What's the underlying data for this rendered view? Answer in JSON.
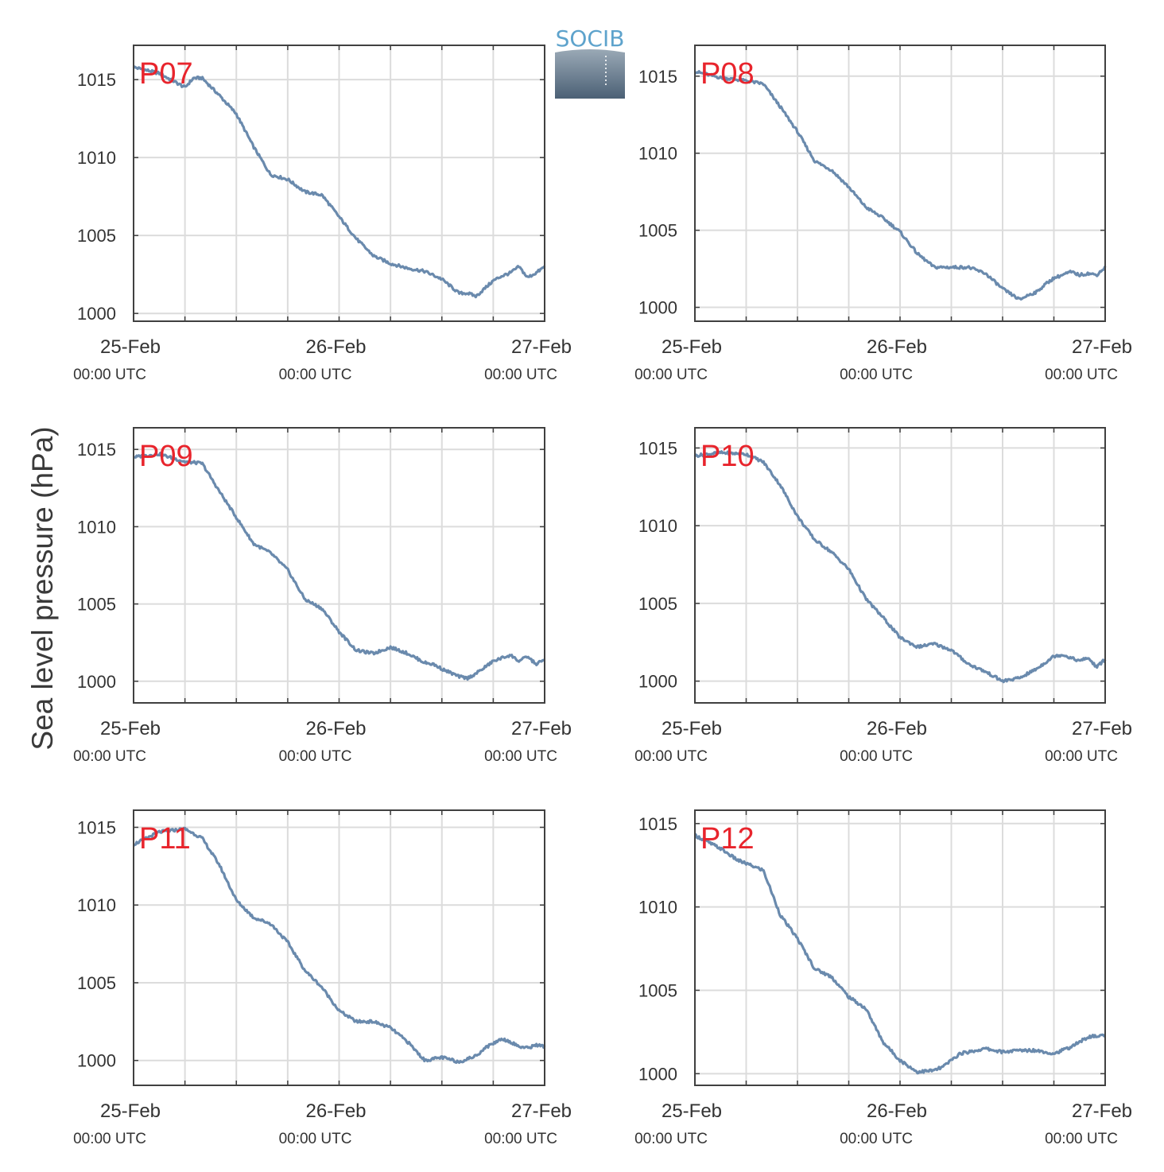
{
  "figure": {
    "ylabel": "Sea level pressure (hPa)",
    "logo_text": "SOCIB"
  },
  "colors": {
    "series": "#6a8aad",
    "station_label": "#e8242c",
    "axis": "#404040",
    "grid": "#dcdcdc"
  },
  "chart_data": [
    {
      "type": "line",
      "station": "P07",
      "xlim": [
        "2015-02-25 00:00",
        "2015-02-27 00:00"
      ],
      "ylim": [
        999.5,
        1017.2
      ],
      "yticks": [
        "1000",
        "1005",
        "1010",
        "1015"
      ],
      "xticks": [
        {
          "date": "25-Feb",
          "time": "00:00 UTC"
        },
        {
          "date": "26-Feb",
          "time": "00:00 UTC"
        },
        {
          "date": "27-Feb",
          "time": "00:00 UTC"
        }
      ],
      "x_hours": [
        0,
        3,
        6,
        7,
        8,
        10,
        12,
        14,
        16,
        18,
        20,
        22,
        24,
        26,
        28,
        30,
        32,
        34,
        36,
        38,
        39,
        40,
        41,
        42,
        43,
        44,
        45,
        46,
        47,
        48
      ],
      "y": [
        1015.8,
        1015.4,
        1014.5,
        1015.1,
        1015.1,
        1014.0,
        1012.8,
        1010.7,
        1008.9,
        1008.6,
        1007.8,
        1007.6,
        1006.2,
        1004.8,
        1003.7,
        1003.2,
        1002.9,
        1002.7,
        1002.2,
        1001.3,
        1001.3,
        1001.1,
        1001.6,
        1002.1,
        1002.4,
        1002.6,
        1003.0,
        1002.3,
        1002.6,
        1003.0
      ]
    },
    {
      "type": "line",
      "station": "P08",
      "xlim": [
        "2015-02-25 00:00",
        "2015-02-27 00:00"
      ],
      "ylim": [
        999.1,
        1017.0
      ],
      "yticks": [
        "1000",
        "1005",
        "1010",
        "1015"
      ],
      "xticks": [
        {
          "date": "25-Feb",
          "time": "00:00 UTC"
        },
        {
          "date": "26-Feb",
          "time": "00:00 UTC"
        },
        {
          "date": "27-Feb",
          "time": "00:00 UTC"
        }
      ],
      "x_hours": [
        0,
        3,
        6,
        8,
        10,
        12,
        14,
        16,
        18,
        20,
        22,
        24,
        26,
        28,
        30,
        32,
        34,
        36,
        38,
        39,
        40,
        41,
        42,
        43,
        44,
        45,
        46,
        47,
        48
      ],
      "y": [
        1015.3,
        1014.9,
        1014.7,
        1014.5,
        1013.0,
        1011.4,
        1009.5,
        1008.9,
        1007.8,
        1006.5,
        1005.8,
        1004.9,
        1003.5,
        1002.6,
        1002.6,
        1002.6,
        1002.2,
        1001.2,
        1000.5,
        1000.8,
        1001.0,
        1001.5,
        1001.9,
        1002.1,
        1002.3,
        1002.1,
        1002.2,
        1002.1,
        1002.6
      ]
    },
    {
      "type": "line",
      "station": "P09",
      "xlim": [
        "2015-02-25 00:00",
        "2015-02-27 00:00"
      ],
      "ylim": [
        998.6,
        1016.4
      ],
      "yticks": [
        "1000",
        "1005",
        "1010",
        "1015"
      ],
      "xticks": [
        {
          "date": "25-Feb",
          "time": "00:00 UTC"
        },
        {
          "date": "26-Feb",
          "time": "00:00 UTC"
        },
        {
          "date": "27-Feb",
          "time": "00:00 UTC"
        }
      ],
      "x_hours": [
        0,
        3,
        6,
        8,
        10,
        12,
        14,
        16,
        18,
        20,
        22,
        24,
        26,
        28,
        30,
        32,
        34,
        35,
        36,
        38,
        39,
        40,
        41,
        42,
        43,
        44,
        45,
        46,
        47,
        48
      ],
      "y": [
        1014.5,
        1014.7,
        1014.2,
        1014.1,
        1012.3,
        1010.6,
        1008.9,
        1008.3,
        1007.2,
        1005.3,
        1004.7,
        1003.2,
        1002.0,
        1001.8,
        1002.2,
        1001.8,
        1001.2,
        1001.1,
        1000.8,
        1000.3,
        1000.2,
        1000.5,
        1000.9,
        1001.3,
        1001.5,
        1001.7,
        1001.3,
        1001.6,
        1001.1,
        1001.4
      ]
    },
    {
      "type": "line",
      "station": "P10",
      "xlim": [
        "2015-02-25 00:00",
        "2015-02-27 00:00"
      ],
      "ylim": [
        998.6,
        1016.3
      ],
      "yticks": [
        "1000",
        "1005",
        "1010",
        "1015"
      ],
      "xticks": [
        {
          "date": "25-Feb",
          "time": "00:00 UTC"
        },
        {
          "date": "26-Feb",
          "time": "00:00 UTC"
        },
        {
          "date": "27-Feb",
          "time": "00:00 UTC"
        }
      ],
      "x_hours": [
        0,
        3,
        6,
        8,
        10,
        12,
        14,
        16,
        18,
        20,
        22,
        24,
        26,
        28,
        30,
        32,
        34,
        36,
        38,
        39,
        40,
        41,
        42,
        43,
        44,
        45,
        46,
        47,
        48
      ],
      "y": [
        1014.5,
        1014.7,
        1014.6,
        1014.1,
        1012.6,
        1010.6,
        1009.1,
        1008.3,
        1007.2,
        1005.3,
        1004.1,
        1002.8,
        1002.2,
        1002.4,
        1002.0,
        1001.1,
        1000.6,
        1000.0,
        1000.2,
        1000.5,
        1000.8,
        1001.2,
        1001.6,
        1001.7,
        1001.5,
        1001.3,
        1001.5,
        1000.9,
        1001.4
      ]
    },
    {
      "type": "line",
      "station": "P11",
      "xlim": [
        "2015-02-25 00:00",
        "2015-02-27 00:00"
      ],
      "ylim": [
        998.4,
        1016.1
      ],
      "yticks": [
        "1000",
        "1005",
        "1010",
        "1015"
      ],
      "xticks": [
        {
          "date": "25-Feb",
          "time": "00:00 UTC"
        },
        {
          "date": "26-Feb",
          "time": "00:00 UTC"
        },
        {
          "date": "27-Feb",
          "time": "00:00 UTC"
        }
      ],
      "x_hours": [
        0,
        3,
        6,
        8,
        10,
        12,
        14,
        16,
        18,
        20,
        22,
        24,
        26,
        28,
        30,
        32,
        34,
        36,
        38,
        39,
        40,
        41,
        42,
        43,
        44,
        45,
        46,
        47,
        48
      ],
      "y": [
        1013.9,
        1014.7,
        1014.9,
        1014.3,
        1012.6,
        1010.3,
        1009.2,
        1008.8,
        1007.6,
        1005.8,
        1004.7,
        1003.2,
        1002.5,
        1002.5,
        1002.1,
        1001.2,
        1000.0,
        1000.2,
        999.9,
        1000.1,
        1000.3,
        1000.8,
        1001.1,
        1001.4,
        1001.2,
        1000.9,
        1000.8,
        1001.0,
        1000.9
      ]
    },
    {
      "type": "line",
      "station": "P12",
      "xlim": [
        "2015-02-25 00:00",
        "2015-02-27 00:00"
      ],
      "ylim": [
        999.3,
        1015.8
      ],
      "yticks": [
        "1000",
        "1005",
        "1010",
        "1015"
      ],
      "xticks": [
        {
          "date": "25-Feb",
          "time": "00:00 UTC"
        },
        {
          "date": "26-Feb",
          "time": "00:00 UTC"
        },
        {
          "date": "27-Feb",
          "time": "00:00 UTC"
        }
      ],
      "x_hours": [
        0,
        3,
        5,
        8,
        10,
        12,
        14,
        16,
        18,
        20,
        22,
        24,
        26,
        28,
        29,
        30,
        31,
        32,
        34,
        36,
        38,
        40,
        42,
        44,
        46,
        48
      ],
      "y": [
        1014.3,
        1013.5,
        1012.8,
        1012.2,
        1009.5,
        1008.1,
        1006.3,
        1005.8,
        1004.6,
        1003.9,
        1001.9,
        1000.8,
        1000.1,
        1000.2,
        1000.4,
        1000.8,
        1001.2,
        1001.3,
        1001.5,
        1001.3,
        1001.4,
        1001.4,
        1001.2,
        1001.6,
        1002.2,
        1002.3
      ]
    }
  ]
}
